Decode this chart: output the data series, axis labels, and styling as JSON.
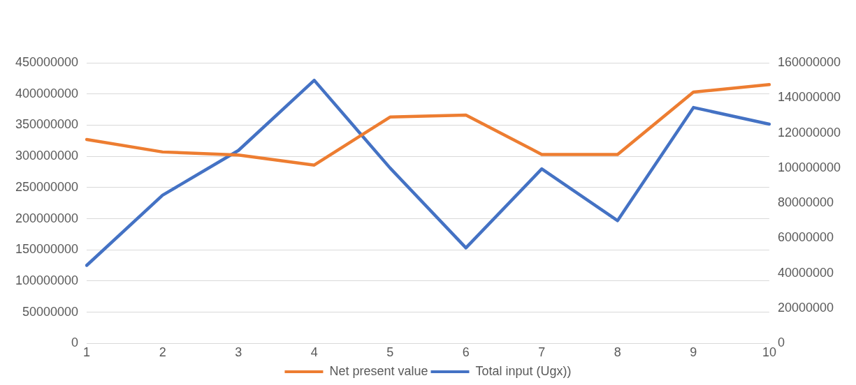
{
  "chart_data": {
    "type": "line",
    "categories": [
      "1",
      "2",
      "3",
      "4",
      "5",
      "6",
      "7",
      "8",
      "9",
      "10"
    ],
    "series": [
      {
        "name": "Net present value",
        "color": "#ed7d31",
        "values": [
          327000000,
          307000000,
          302000000,
          286000000,
          363000000,
          366000000,
          303000000,
          303000000,
          403000000,
          415000000
        ]
      },
      {
        "name": "Total input (Ugx))",
        "color": "#4472c4",
        "axis": "y2",
        "values": [
          44500000,
          84500000,
          110000000,
          150000000,
          100000000,
          54500000,
          99500000,
          70000000,
          134500000,
          125000000
        ]
      }
    ],
    "ylim": [
      0,
      450000000
    ],
    "yticks": [
      0,
      50000000,
      100000000,
      150000000,
      200000000,
      250000000,
      300000000,
      350000000,
      400000000,
      450000000
    ],
    "y2lim": [
      0,
      160000000
    ],
    "y2ticks": [
      0,
      20000000,
      40000000,
      60000000,
      80000000,
      100000000,
      120000000,
      140000000,
      160000000
    ],
    "grid": "y",
    "legend": "bottom",
    "marker": "none",
    "line_style": "solid"
  }
}
